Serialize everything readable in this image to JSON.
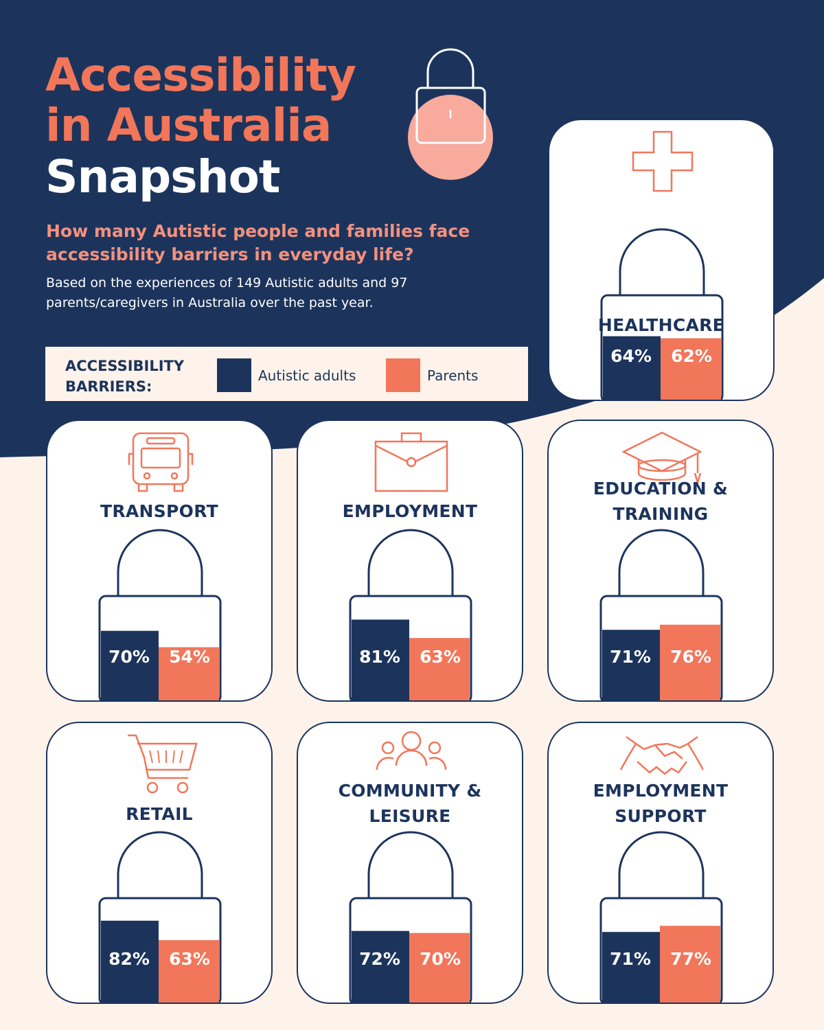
{
  "title": {
    "line1": "Accessibility",
    "line2": "in Australia",
    "line3": "Snapshot"
  },
  "question": "How many Autistic people and families face accessibility barriers in everyday life?",
  "basis": "Based on the experiences of 149 Autistic adults and 97 parents/caregivers in Australia over the past year.",
  "legend": {
    "title": "ACCESSIBILITY BARRIERS:",
    "autistic_label": "Autistic adults",
    "parents_label": "Parents"
  },
  "colors": {
    "navy": "#1c345c",
    "coral": "#f1765a",
    "pink": "#f8aa9d",
    "cream": "#fdf3ea"
  },
  "chart_data": {
    "type": "bar",
    "categories": [
      "Healthcare",
      "Transport",
      "Employment",
      "Education & Training",
      "Retail",
      "Community & Leisure",
      "Employment Support"
    ],
    "series": [
      {
        "name": "Autistic adults",
        "values": [
          64,
          70,
          81,
          71,
          82,
          72,
          71
        ]
      },
      {
        "name": "Parents",
        "values": [
          62,
          54,
          63,
          76,
          63,
          70,
          77
        ]
      }
    ],
    "ylim": [
      0,
      100
    ],
    "value_suffix": "%",
    "cards": [
      {
        "title": "HEALTHCARE",
        "icon": "medical-cross-icon",
        "autistic": 64,
        "parents": 62,
        "autistic_label": "64%",
        "parents_label": "62%"
      },
      {
        "title": "TRANSPORT",
        "icon": "bus-icon",
        "autistic": 70,
        "parents": 54,
        "autistic_label": "70%",
        "parents_label": "54%"
      },
      {
        "title": "EMPLOYMENT",
        "icon": "briefcase-icon",
        "autistic": 81,
        "parents": 63,
        "autistic_label": "81%",
        "parents_label": "63%"
      },
      {
        "title": "EDUCATION & TRAINING",
        "icon": "graduation-cap-icon",
        "autistic": 71,
        "parents": 76,
        "autistic_label": "71%",
        "parents_label": "76%"
      },
      {
        "title": "RETAIL",
        "icon": "shopping-cart-icon",
        "autistic": 82,
        "parents": 63,
        "autistic_label": "82%",
        "parents_label": "63%"
      },
      {
        "title": "COMMUNITY & LEISURE",
        "icon": "people-icon",
        "autistic": 72,
        "parents": 70,
        "autistic_label": "72%",
        "parents_label": "70%"
      },
      {
        "title": "EMPLOYMENT SUPPORT",
        "icon": "handshake-icon",
        "autistic": 71,
        "parents": 77,
        "autistic_label": "71%",
        "parents_label": "77%"
      }
    ]
  }
}
